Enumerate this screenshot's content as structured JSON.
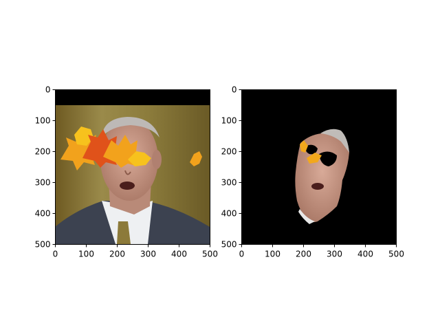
{
  "figure": {
    "background": "#ffffff",
    "axes_color": "#000000"
  },
  "chart_data": [
    {
      "type": "image",
      "subject": "original face photo with overlaid autumn maple-leaf occlusions and a black band across the top",
      "xlim": [
        0,
        500
      ],
      "ylim": [
        500,
        0
      ],
      "xticks": [
        0,
        100,
        200,
        300,
        400,
        500
      ],
      "yticks": [
        0,
        100,
        200,
        300,
        400,
        500
      ],
      "grid": false,
      "colors": {
        "black_band": "#000000",
        "background_wood": "#8a7a3a",
        "suit": "#3c4250",
        "shirt": "#eef0f2",
        "skin": "#c99a88",
        "hair": "#bdb9b6",
        "leaf_orange": "#f2a21c",
        "leaf_red": "#e0521a",
        "leaf_yellow": "#f7c21d",
        "tie": "#8c7a3a"
      }
    },
    {
      "type": "image",
      "subject": "segmented face mask result on black background with leaf fragments and black holes",
      "xlim": [
        0,
        500
      ],
      "ylim": [
        500,
        0
      ],
      "xticks": [
        0,
        100,
        200,
        300,
        400,
        500
      ],
      "yticks": [
        0,
        100,
        200,
        300,
        400,
        500
      ],
      "grid": false,
      "colors": {
        "background": "#000000",
        "skin": "#c99a88",
        "hair": "#c0bcb8",
        "leaf": "#f2a81c",
        "collar": "#e8e8e8"
      }
    }
  ]
}
